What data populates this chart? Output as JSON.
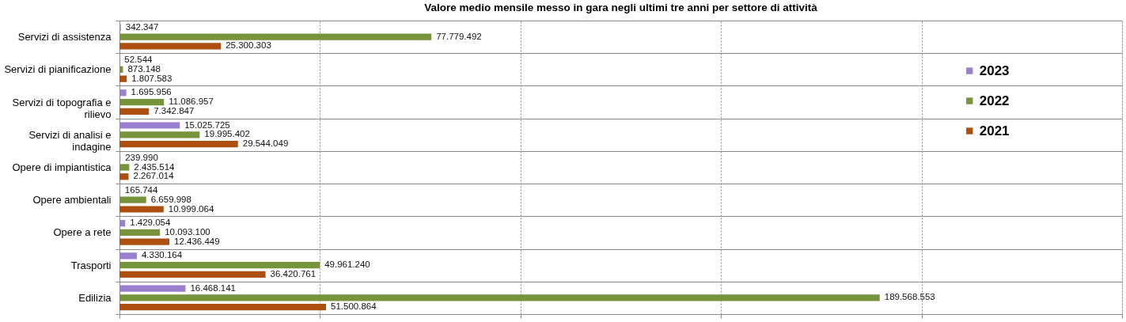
{
  "chart_data": {
    "type": "bar",
    "orientation": "horizontal",
    "title": "Valore medio mensile messo in gara negli ultimi tre anni per settore di attività",
    "categories": [
      "Servizi di assistenza",
      "Servizi di pianificazione",
      "Servizi di topografia e rilievo",
      "Servizi di analisi e indagine",
      "Opere di impiantistica",
      "Opere ambientali",
      "Opere a rete",
      "Trasporti",
      "Edilizia"
    ],
    "series": [
      {
        "name": "2023",
        "color": "#9a7fd0",
        "values": [
          342347,
          52544,
          1695956,
          15025725,
          239990,
          165744,
          1429054,
          4330164,
          16468141
        ],
        "value_labels": [
          "342.347",
          "52.544",
          "1.695.956",
          "15.025.725",
          "239.990",
          "165.744",
          "1.429.054",
          "4.330.164",
          "16.468.141"
        ]
      },
      {
        "name": "2022",
        "color": "#77933c",
        "values": [
          77779492,
          873148,
          11086957,
          19995402,
          2435514,
          6659998,
          10093100,
          49961240,
          189568553
        ],
        "value_labels": [
          "77.779.492",
          "873.148",
          "11.086.957",
          "19.995.402",
          "2.435.514",
          "6.659.998",
          "10.093.100",
          "49.961.240",
          "189.568.553"
        ]
      },
      {
        "name": "2021",
        "color": "#ad500f",
        "values": [
          25300303,
          1807583,
          7342847,
          29544049,
          2267014,
          10999064,
          12436449,
          36420761,
          51500864
        ],
        "value_labels": [
          "25.300.303",
          "1.807.583",
          "7.342.847",
          "29.544.049",
          "2.267.014",
          "10.999.064",
          "12.436.449",
          "36.420.761",
          "51.500.864"
        ]
      }
    ],
    "xlim": [
      0,
      250000000
    ],
    "xticks": [
      {
        "value": 0,
        "label": null
      },
      {
        "value": 50000000,
        "label": null
      },
      {
        "value": 100000000,
        "label": null
      },
      {
        "value": 150000000,
        "label": null
      },
      {
        "value": 200000000,
        "label": null
      },
      {
        "value": 250000000,
        "label": null
      }
    ],
    "tick_labels": "y",
    "grid": true,
    "legend": "right"
  }
}
